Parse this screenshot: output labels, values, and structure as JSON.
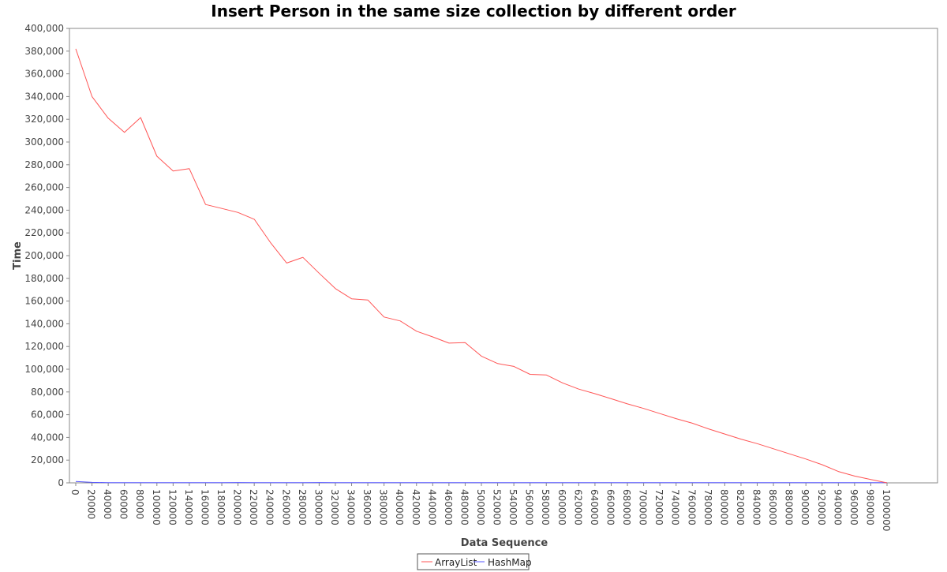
{
  "chart_data": {
    "type": "line",
    "title": "Insert Person in the same size collection by different order",
    "xlabel": "Data Sequence",
    "ylabel": "Time",
    "x": [
      0,
      20000,
      40000,
      60000,
      80000,
      100000,
      120000,
      140000,
      160000,
      180000,
      200000,
      220000,
      240000,
      260000,
      280000,
      300000,
      320000,
      340000,
      360000,
      380000,
      400000,
      420000,
      440000,
      460000,
      480000,
      500000,
      520000,
      540000,
      560000,
      580000,
      600000,
      620000,
      640000,
      660000,
      680000,
      700000,
      720000,
      740000,
      760000,
      780000,
      800000,
      820000,
      840000,
      860000,
      880000,
      900000,
      920000,
      940000,
      960000,
      980000,
      1000000
    ],
    "x_tick_labels": [
      "0",
      "20000",
      "40000",
      "60000",
      "80000",
      "100000",
      "120000",
      "140000",
      "160000",
      "180000",
      "200000",
      "220000",
      "240000",
      "260000",
      "280000",
      "300000",
      "320000",
      "340000",
      "360000",
      "380000",
      "400000",
      "420000",
      "440000",
      "460000",
      "480000",
      "500000",
      "520000",
      "540000",
      "560000",
      "580000",
      "600000",
      "620000",
      "640000",
      "660000",
      "680000",
      "700000",
      "720000",
      "740000",
      "760000",
      "780000",
      "800000",
      "820000",
      "840000",
      "860000",
      "880000",
      "900000",
      "920000",
      "940000",
      "960000",
      "980000",
      "1000000"
    ],
    "ylim": [
      0,
      400000
    ],
    "y_ticks": [
      0,
      20000,
      40000,
      60000,
      80000,
      100000,
      120000,
      140000,
      160000,
      180000,
      200000,
      220000,
      240000,
      260000,
      280000,
      300000,
      320000,
      340000,
      360000,
      380000,
      400000
    ],
    "y_tick_labels": [
      "0",
      "20,000",
      "40,000",
      "60,000",
      "80,000",
      "100,000",
      "120,000",
      "140,000",
      "160,000",
      "180,000",
      "200,000",
      "220,000",
      "240,000",
      "260,000",
      "280,000",
      "300,000",
      "320,000",
      "340,000",
      "360,000",
      "380,000",
      "400,000"
    ],
    "grid": false,
    "legend_position": "bottom-center",
    "series": [
      {
        "name": "ArrayList",
        "color": "#ff5555",
        "values": [
          382000,
          340000,
          321000,
          308500,
          321500,
          287500,
          274500,
          276500,
          245000,
          241500,
          238000,
          232000,
          211500,
          193500,
          198500,
          184500,
          171000,
          162000,
          161000,
          146000,
          142500,
          133500,
          128500,
          123000,
          123500,
          111500,
          105000,
          102500,
          95500,
          95000,
          88000,
          82500,
          78500,
          74000,
          69500,
          65500,
          61000,
          56500,
          52500,
          47500,
          43000,
          38500,
          34500,
          30000,
          25500,
          21000,
          16000,
          10000,
          6000,
          3000,
          0
        ],
        "x": [
          0,
          20000,
          40000,
          60000,
          80000,
          100000,
          120000,
          140000,
          160000,
          180000,
          200000,
          220000,
          240000,
          260000,
          280000,
          300000,
          320000,
          340000,
          360000,
          380000,
          400000,
          420000,
          440000,
          460000,
          480000,
          500000,
          520000,
          540000,
          560000,
          580000,
          600000,
          620000,
          640000,
          660000,
          680000,
          700000,
          720000,
          740000,
          760000,
          780000,
          800000,
          820000,
          840000,
          860000,
          880000,
          900000,
          920000,
          940000,
          960000,
          980000,
          1000000
        ]
      },
      {
        "name": "HashMap",
        "color": "#5555ff",
        "values": [
          1200,
          400,
          200,
          200,
          200,
          200,
          200,
          200,
          200,
          200,
          300,
          200,
          200,
          200,
          200,
          300,
          200,
          200,
          200,
          200,
          200,
          200,
          200,
          200,
          200,
          200,
          200,
          200,
          200,
          200,
          200,
          200,
          200,
          200,
          200,
          200,
          200,
          200,
          200,
          200,
          200,
          200,
          200,
          200,
          200,
          200,
          200,
          200,
          200,
          200,
          200
        ],
        "x": [
          0,
          20000,
          40000,
          60000,
          80000,
          100000,
          120000,
          140000,
          160000,
          180000,
          200000,
          220000,
          240000,
          260000,
          280000,
          300000,
          320000,
          340000,
          360000,
          380000,
          400000,
          420000,
          440000,
          460000,
          480000,
          500000,
          520000,
          540000,
          560000,
          580000,
          600000,
          620000,
          640000,
          660000,
          680000,
          700000,
          720000,
          740000,
          760000,
          780000,
          800000,
          820000,
          840000,
          860000,
          880000,
          900000,
          920000,
          940000,
          960000,
          980000,
          1000000
        ]
      }
    ]
  }
}
